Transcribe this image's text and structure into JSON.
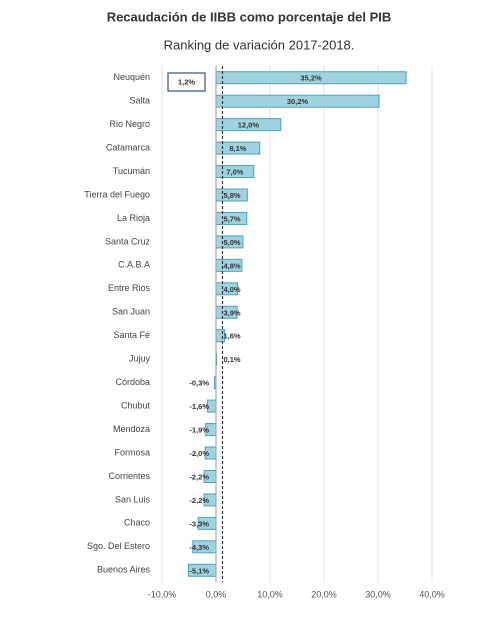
{
  "chart_data": {
    "type": "barh",
    "title": "Recaudación de IIBB como porcentaje del PIB",
    "subtitle": "Ranking de variación 2017-2018.",
    "categories": [
      "Neuquén",
      "Salta",
      "Rio Negro",
      "Catamarca",
      "Tucumán",
      "Tierra del Fuego",
      "La Rioja",
      "Santa Cruz",
      "C.A.B.A",
      "Entre Rios",
      "San Juan",
      "Santa Fé",
      "Jujuy",
      "Córdoba",
      "Chubut",
      "Mendoza",
      "Formosa",
      "Corrientes",
      "San Luis",
      "Chaco",
      "Sgo. Del Estero",
      "Buenos Aires"
    ],
    "values": [
      35.2,
      30.2,
      12.0,
      8.1,
      7.0,
      5.8,
      5.7,
      5.0,
      4.8,
      4.0,
      3.9,
      1.6,
      0.1,
      -0.3,
      -1.6,
      -1.9,
      -2.0,
      -2.2,
      -2.2,
      -3.3,
      -4.3,
      -5.1
    ],
    "value_labels": [
      "35,2%",
      "30,2%",
      "12,0%",
      "8,1%",
      "7,0%",
      "5,8%",
      "5,7%",
      "5,0%",
      "4,8%",
      "4,0%",
      "3,9%",
      "1,6%",
      "0,1%",
      "-0,3%",
      "-1,6%",
      "-1,9%",
      "-2,0%",
      "-2,2%",
      "-2,2%",
      "-3,3%",
      "-4,3%",
      "-5,1%"
    ],
    "color": "#9fd3e0",
    "xlim": [
      -10,
      40
    ],
    "xticks": [
      {
        "value": -10,
        "label": "-10,0%"
      },
      {
        "value": 0,
        "label": "0,0%"
      },
      {
        "value": 10,
        "label": "10,0%"
      },
      {
        "value": 20,
        "label": "20,0%"
      },
      {
        "value": 30,
        "label": "30,0%"
      },
      {
        "value": 40,
        "label": "40,0%"
      }
    ],
    "grid": true,
    "reference_line": {
      "value": 1.2,
      "label": "1,2%"
    }
  }
}
